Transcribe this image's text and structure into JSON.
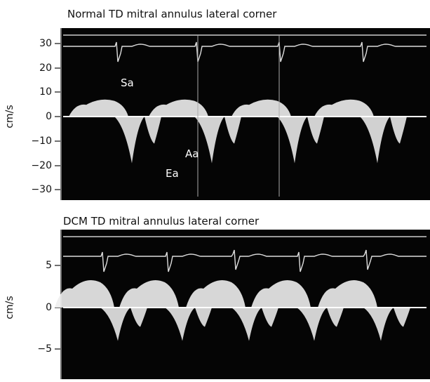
{
  "panels": [
    {
      "title": "Normal TD mitral annulus lateral corner",
      "axis_label": "cm/s",
      "ticks": [
        "30",
        "20",
        "10",
        "0",
        "−10",
        "−20",
        "−30"
      ],
      "annotations": [
        "Sa",
        "Aa",
        "Ea"
      ]
    },
    {
      "title": "DCM TD mitral annulus lateral corner",
      "axis_label": "cm/s",
      "ticks": [
        "5",
        "0",
        "−5"
      ]
    }
  ]
}
